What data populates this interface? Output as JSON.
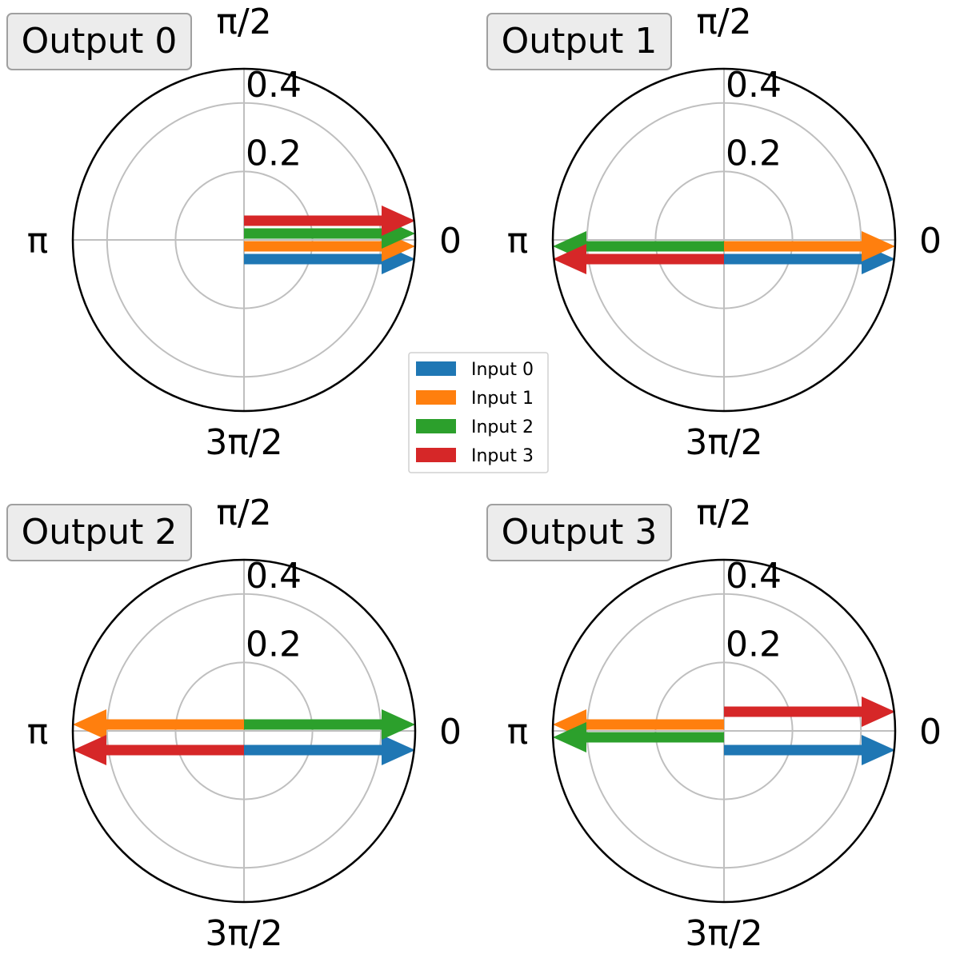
{
  "chart_data": {
    "type": "polar",
    "radial_ticks": [
      "0.2",
      "0.4"
    ],
    "rlim": [
      0,
      0.5
    ],
    "angle_ticks": [
      {
        "angle": 0,
        "label": "0"
      },
      {
        "angle": 90,
        "label": "π/2"
      },
      {
        "angle": 180,
        "label": "π"
      },
      {
        "angle": 270,
        "label": "3π/2"
      }
    ],
    "grid": true,
    "legend": {
      "placement": "center",
      "entries": [
        {
          "name": "Input 0",
          "color": "#1f77b4"
        },
        {
          "name": "Input 1",
          "color": "#ff7f0e"
        },
        {
          "name": "Input 2",
          "color": "#2ca02c"
        },
        {
          "name": "Input 3",
          "color": "#d62728"
        }
      ]
    },
    "panels": [
      {
        "title": "Output 0",
        "vectors": [
          {
            "series": "Input 0",
            "magnitude": 0.5,
            "phase": "0"
          },
          {
            "series": "Input 1",
            "magnitude": 0.5,
            "phase": "0"
          },
          {
            "series": "Input 2",
            "magnitude": 0.5,
            "phase": "0"
          },
          {
            "series": "Input 3",
            "magnitude": 0.5,
            "phase": "0"
          }
        ]
      },
      {
        "title": "Output 1",
        "vectors": [
          {
            "series": "Input 0",
            "magnitude": 0.5,
            "phase": "0"
          },
          {
            "series": "Input 1",
            "magnitude": 0.5,
            "phase": "0"
          },
          {
            "series": "Input 2",
            "magnitude": 0.5,
            "phase": "π"
          },
          {
            "series": "Input 3",
            "magnitude": 0.5,
            "phase": "π"
          }
        ]
      },
      {
        "title": "Output 2",
        "vectors": [
          {
            "series": "Input 0",
            "magnitude": 0.5,
            "phase": "0"
          },
          {
            "series": "Input 1",
            "magnitude": 0.5,
            "phase": "π"
          },
          {
            "series": "Input 2",
            "magnitude": 0.5,
            "phase": "0"
          },
          {
            "series": "Input 3",
            "magnitude": 0.5,
            "phase": "π"
          }
        ]
      },
      {
        "title": "Output 3",
        "vectors": [
          {
            "series": "Input 0",
            "magnitude": 0.5,
            "phase": "0"
          },
          {
            "series": "Input 1",
            "magnitude": 0.5,
            "phase": "π"
          },
          {
            "series": "Input 2",
            "magnitude": 0.5,
            "phase": "π"
          },
          {
            "series": "Input 3",
            "magnitude": 0.5,
            "phase": "0"
          }
        ]
      }
    ]
  }
}
